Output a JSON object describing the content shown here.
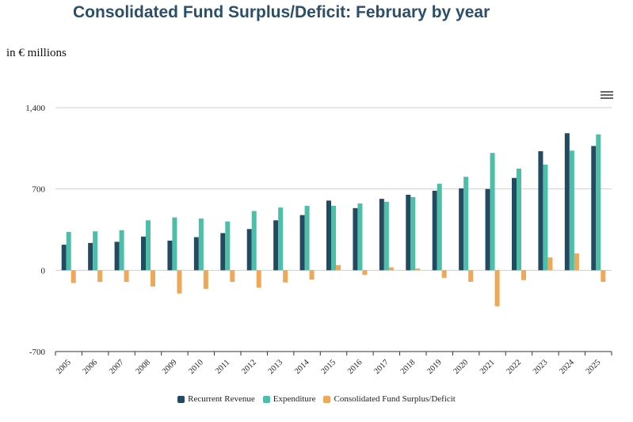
{
  "header": {
    "title": "Consolidated Fund Surplus/Deficit: February by year",
    "subtitle": "in € millions"
  },
  "menu": {
    "icon": "hamburger-menu-icon"
  },
  "chart_data": {
    "type": "bar",
    "title": "Consolidated Fund Surplus/Deficit: February by year",
    "subtitle": "in € millions",
    "xlabel": "",
    "ylabel": "",
    "ylim": [
      -700,
      1400
    ],
    "yticks": [
      -700,
      0,
      700,
      1400
    ],
    "ytick_labels": [
      "-700",
      "0",
      "700",
      "1,400"
    ],
    "grid": true,
    "legend_position": "bottom-center",
    "categories": [
      "2005",
      "2006",
      "2007",
      "2008",
      "2009",
      "2010",
      "2011",
      "2012",
      "2013",
      "2014",
      "2015",
      "2016",
      "2017",
      "2018",
      "2019",
      "2020",
      "2021",
      "2022",
      "2023",
      "2024",
      "2025"
    ],
    "series": [
      {
        "name": "Recurrent Revenue",
        "color": "#244a62",
        "values": [
          220,
          235,
          245,
          290,
          255,
          285,
          320,
          355,
          430,
          475,
          600,
          535,
          615,
          650,
          685,
          705,
          700,
          795,
          1025,
          1180,
          1070
        ]
      },
      {
        "name": "Expenditure",
        "color": "#4dbfa8",
        "values": [
          330,
          335,
          345,
          430,
          455,
          445,
          420,
          510,
          540,
          555,
          555,
          575,
          590,
          630,
          745,
          805,
          1010,
          875,
          910,
          1030,
          1170
        ]
      },
      {
        "name": "Consolidated Fund Surplus/Deficit",
        "color": "#eda85a",
        "values": [
          -110,
          -100,
          -100,
          -140,
          -200,
          -160,
          -100,
          -150,
          -105,
          -80,
          45,
          -40,
          25,
          15,
          -65,
          -100,
          -310,
          -85,
          110,
          145,
          -100
        ]
      }
    ]
  }
}
